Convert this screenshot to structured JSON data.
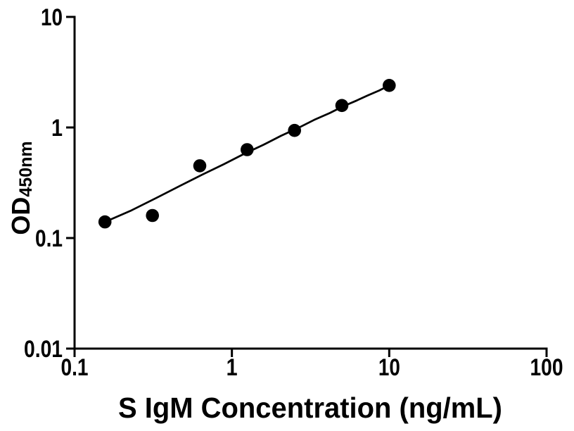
{
  "figure": {
    "background": "#ffffff",
    "ink_color": "#000000"
  },
  "chart_data": {
    "type": "scatter",
    "title": "",
    "xlabel": "S IgM Concentration (ng/mL)",
    "ylabel": "OD",
    "ylabel_sub": "450nm",
    "x_scale": "log",
    "y_scale": "log",
    "xlim": [
      0.1,
      100
    ],
    "ylim": [
      0.01,
      10
    ],
    "x_tick_labels": [
      "0.1",
      "1",
      "10",
      "100"
    ],
    "y_tick_labels": [
      "0.01",
      "0.1",
      "1",
      "10"
    ],
    "grid": false,
    "legend": false,
    "marker": {
      "shape": "filled-circle",
      "color": "#000000",
      "radius_px": 9.3
    },
    "series": [
      {
        "name": "standard-points",
        "x": [
          0.156,
          0.3125,
          0.625,
          1.25,
          2.5,
          5,
          10
        ],
        "y": [
          0.14,
          0.16,
          0.45,
          0.63,
          0.94,
          1.58,
          2.4
        ]
      }
    ],
    "fit_curve": {
      "x": [
        0.156,
        0.23,
        0.33,
        0.465,
        0.645,
        0.89,
        1.185,
        1.59,
        2.05,
        2.66,
        3.33,
        4.19,
        5.08,
        6.2,
        7.3,
        8.64,
        10
      ],
      "y": [
        0.14,
        0.178,
        0.23,
        0.295,
        0.373,
        0.466,
        0.574,
        0.698,
        0.84,
        0.996,
        1.17,
        1.35,
        1.55,
        1.75,
        1.95,
        2.16,
        2.4
      ]
    }
  }
}
